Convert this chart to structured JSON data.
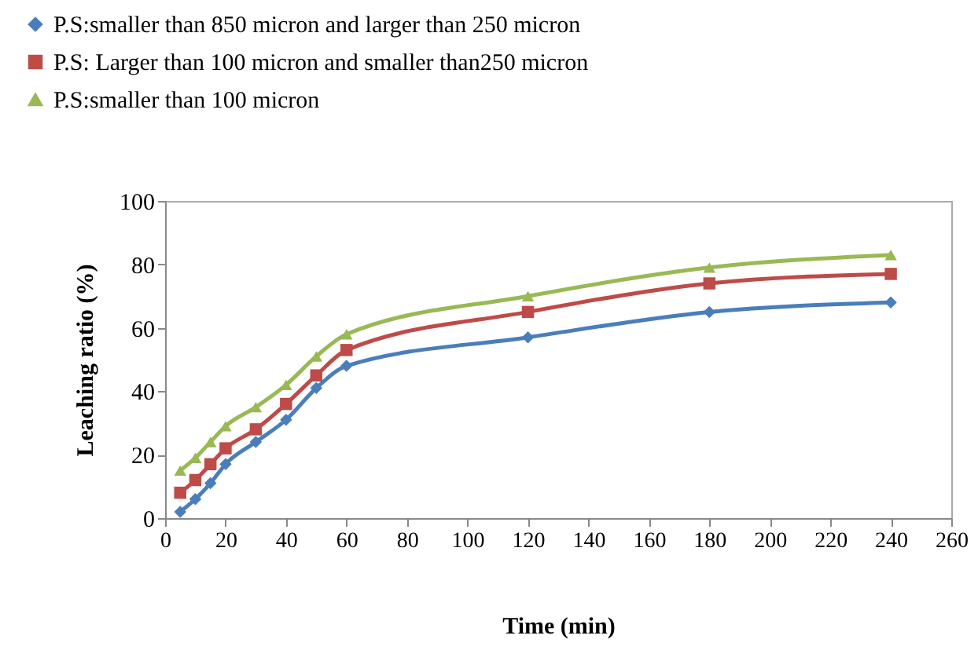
{
  "chart_data": {
    "type": "line",
    "xlabel": "Time (min)",
    "ylabel": "Leaching ratio (%)",
    "x": [
      5,
      10,
      15,
      20,
      30,
      40,
      50,
      60,
      120,
      180,
      240
    ],
    "xlim": [
      0,
      260
    ],
    "xticks": [
      0,
      20,
      40,
      60,
      80,
      100,
      120,
      140,
      160,
      180,
      200,
      220,
      240,
      260
    ],
    "ylim": [
      0,
      100
    ],
    "yticks": [
      0,
      20,
      40,
      60,
      80,
      100
    ],
    "grid": false,
    "legend": "top left",
    "line_style": "solid",
    "series": [
      {
        "name": "P.S:smaller than 850 micron and larger than 250 micron",
        "color": "#4a7ebb",
        "marker": "diamond",
        "values": [
          2,
          6,
          11,
          17,
          24,
          31,
          41,
          48,
          57,
          65,
          68
        ]
      },
      {
        "name": "P.S: Larger than 100 micron and smaller than250 micron",
        "color": "#be4b48",
        "marker": "square",
        "values": [
          8,
          12,
          17,
          22,
          28,
          36,
          45,
          53,
          65,
          74,
          77
        ]
      },
      {
        "name": "P.S:smaller than 100 micron",
        "color": "#98b954",
        "marker": "triangle",
        "values": [
          15,
          19,
          24,
          29,
          35,
          42,
          51,
          58,
          70,
          79,
          83
        ]
      }
    ]
  }
}
